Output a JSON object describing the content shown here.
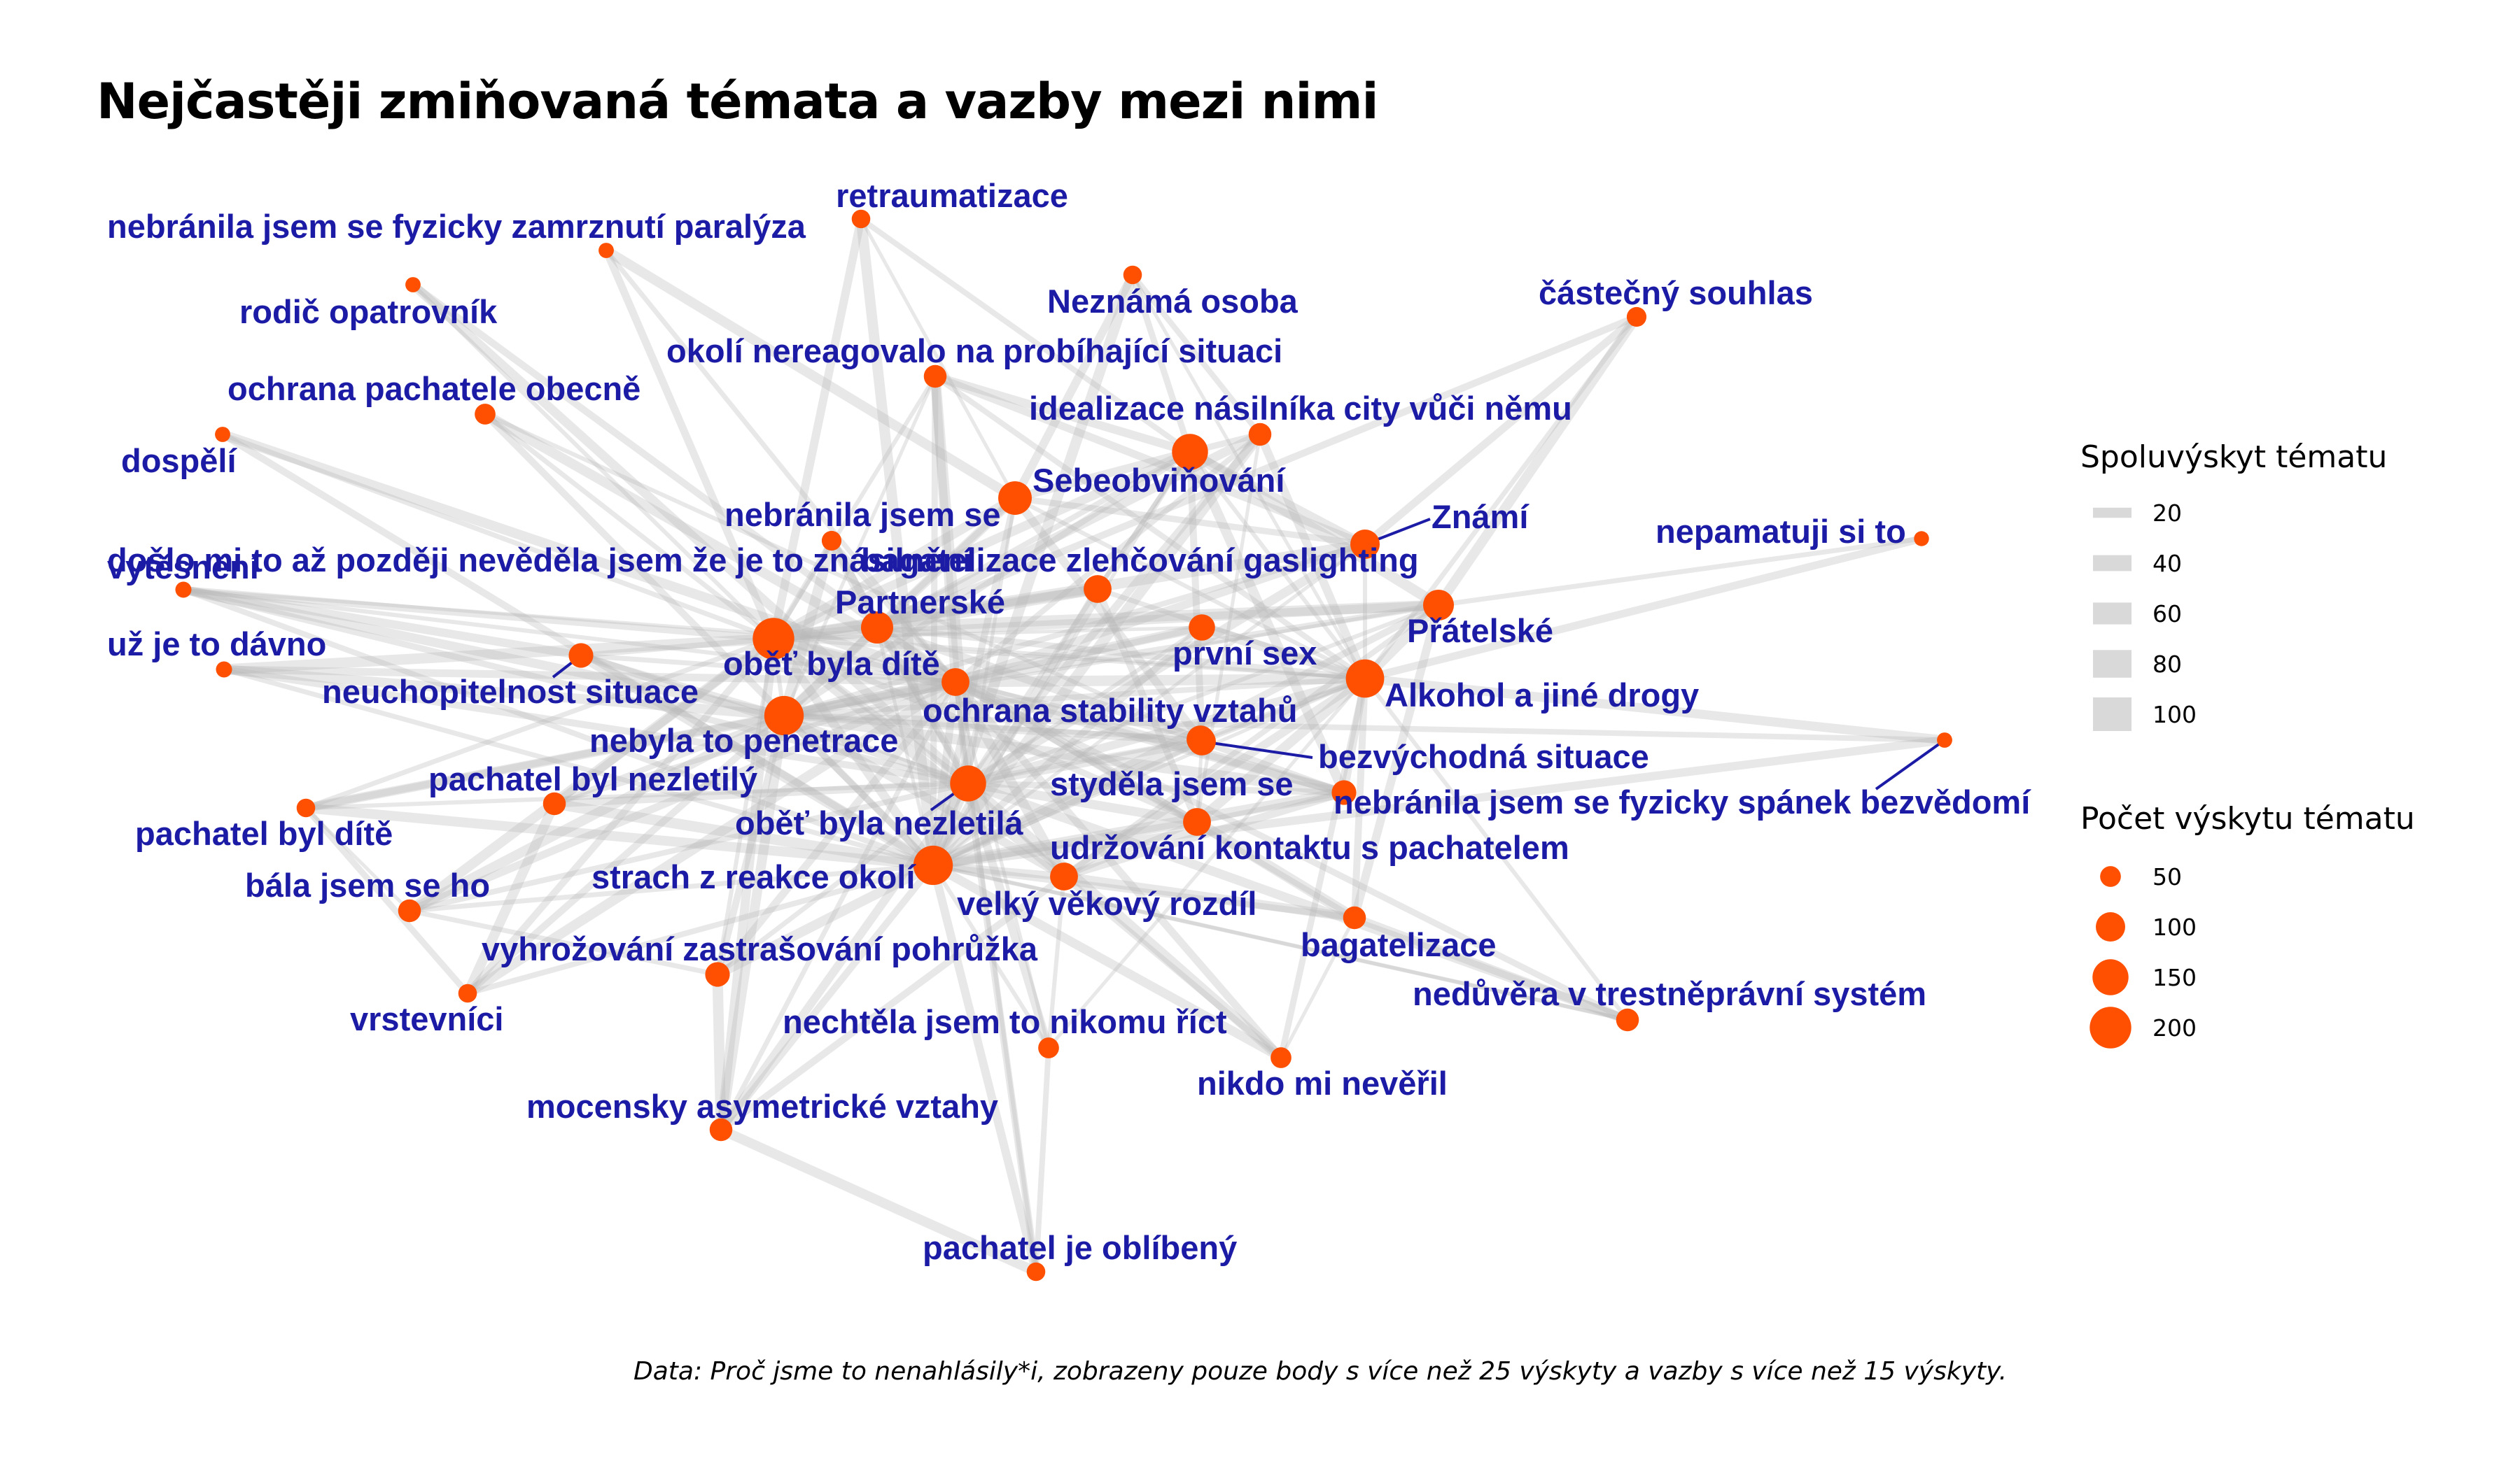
{
  "title": "Nejčastěji zmiňovaná témata a vazby mezi nimi",
  "caption": "Data: Proč jsme to nenahlásily*i, zobrazeny pouze body s více než 25 výskyty a vazby s více než 15 výskyty.",
  "colors": {
    "node": "#fe5000",
    "label": "#1b1ba6",
    "edge": "#b8b8b8",
    "legend_edge": "#d9d9d9"
  },
  "legend": {
    "edges": {
      "title": "Spoluvýskyt tématu",
      "items": [
        {
          "label": "20",
          "value": 20
        },
        {
          "label": "40",
          "value": 40
        },
        {
          "label": "60",
          "value": 60
        },
        {
          "label": "80",
          "value": 80
        },
        {
          "label": "100",
          "value": 100
        }
      ]
    },
    "nodes": {
      "title": "Počet výskytu tématu",
      "items": [
        {
          "label": "50",
          "value": 50
        },
        {
          "label": "100",
          "value": 100
        },
        {
          "label": "150",
          "value": 150
        },
        {
          "label": "200",
          "value": 200
        }
      ]
    }
  },
  "nodes": [
    {
      "id": "retraumatizace",
      "label": "retraumatizace",
      "count": 40
    },
    {
      "id": "nebranila_paralyza",
      "label": "nebránila jsem se fyzicky zamrznutí paralýza",
      "count": 27
    },
    {
      "id": "rodic",
      "label": "rodič opatrovník",
      "count": 27
    },
    {
      "id": "neznama",
      "label": "Neznámá osoba",
      "count": 40
    },
    {
      "id": "castecny",
      "label": "částečný souhlas",
      "count": 45
    },
    {
      "id": "okoli_nereagovalo",
      "label": "okolí nereagovalo na probíhající situaci",
      "count": 60
    },
    {
      "id": "ochrana_pachatele",
      "label": "ochrana pachatele obecně",
      "count": 50
    },
    {
      "id": "idealizace",
      "label": "idealizace násilníka city vůči němu",
      "count": 60
    },
    {
      "id": "dospeli",
      "label": "dospělí",
      "count": 27
    },
    {
      "id": "sebeobvinovani",
      "label": "Sebeobviňování",
      "count": 150
    },
    {
      "id": "znami",
      "label": "Známí",
      "count": 100
    },
    {
      "id": "nepamatuji",
      "label": "nepamatuji si to",
      "count": 26
    },
    {
      "id": "nebranila",
      "label": "nebránila jsem se",
      "count": 130
    },
    {
      "id": "doslo",
      "label": "došlo mi to až později nevěděla jsem že je to znásilnění",
      "count": 45
    },
    {
      "id": "vytesneni",
      "label": "vytěsnění",
      "count": 30
    },
    {
      "id": "bagatelizace_gaslighting",
      "label": "bagatelizace zlehčování gaslighting",
      "count": 90
    },
    {
      "id": "partnerske",
      "label": "Partnerské",
      "count": 120
    },
    {
      "id": "pratelske",
      "label": "Přátelské",
      "count": 110
    },
    {
      "id": "uz_davno",
      "label": "už je to dávno",
      "count": 30
    },
    {
      "id": "obet_dite",
      "label": "oběť byla dítě",
      "count": 200
    },
    {
      "id": "neuchopitelnost",
      "label": "neuchopitelnost situace",
      "count": 70
    },
    {
      "id": "prvni_sex",
      "label": "první sex",
      "count": 80
    },
    {
      "id": "alkohol",
      "label": "Alkohol a jiné drogy",
      "count": 170
    },
    {
      "id": "hub",
      "label": "",
      "count": 90
    },
    {
      "id": "ochrana_stability",
      "label": "ochrana stability vztahů",
      "count": 90
    },
    {
      "id": "nebyla_penetrace",
      "label": "nebyla to penetrace",
      "count": 180
    },
    {
      "id": "bezvychodna",
      "label": "bezvýchodná situace",
      "count": 90
    },
    {
      "id": "nebranila_spanek",
      "label": "nebránila jsem se fyzicky spánek bezvědomí",
      "count": 27
    },
    {
      "id": "pachatel_nezletily",
      "label": "pachatel byl nezletilý",
      "count": 60
    },
    {
      "id": "obet_nezletila",
      "label": "oběť byla nezletilá",
      "count": 150
    },
    {
      "id": "stydela",
      "label": "styděla jsem se",
      "count": 70
    },
    {
      "id": "pachatel_dite",
      "label": "pachatel byl dítě",
      "count": 40
    },
    {
      "id": "udrzovani",
      "label": "udržování kontaktu s pachatelem",
      "count": 90
    },
    {
      "id": "strach",
      "label": "strach z reakce okolí",
      "count": 180
    },
    {
      "id": "bala",
      "label": "bála jsem se ho",
      "count": 60
    },
    {
      "id": "vekovy",
      "label": "velký věkový rozdíl",
      "count": 90
    },
    {
      "id": "bagatelizace",
      "label": "bagatelizace",
      "count": 60
    },
    {
      "id": "vyhrozovani",
      "label": "vyhrožování zastrašování pohrůžka",
      "count": 70
    },
    {
      "id": "vrstevnici",
      "label": "vrstevníci",
      "count": 40
    },
    {
      "id": "neduvera",
      "label": "nedůvěra v trestněprávní systém",
      "count": 60
    },
    {
      "id": "nechtela",
      "label": "nechtěla jsem to nikomu říct",
      "count": 50
    },
    {
      "id": "nikdo",
      "label": "nikdo mi nevěřil",
      "count": 50
    },
    {
      "id": "mocensky",
      "label": "mocensky asymetrické vztahy",
      "count": 60
    },
    {
      "id": "oblibeny",
      "label": "pachatel je oblíbený",
      "count": 40
    }
  ]
}
